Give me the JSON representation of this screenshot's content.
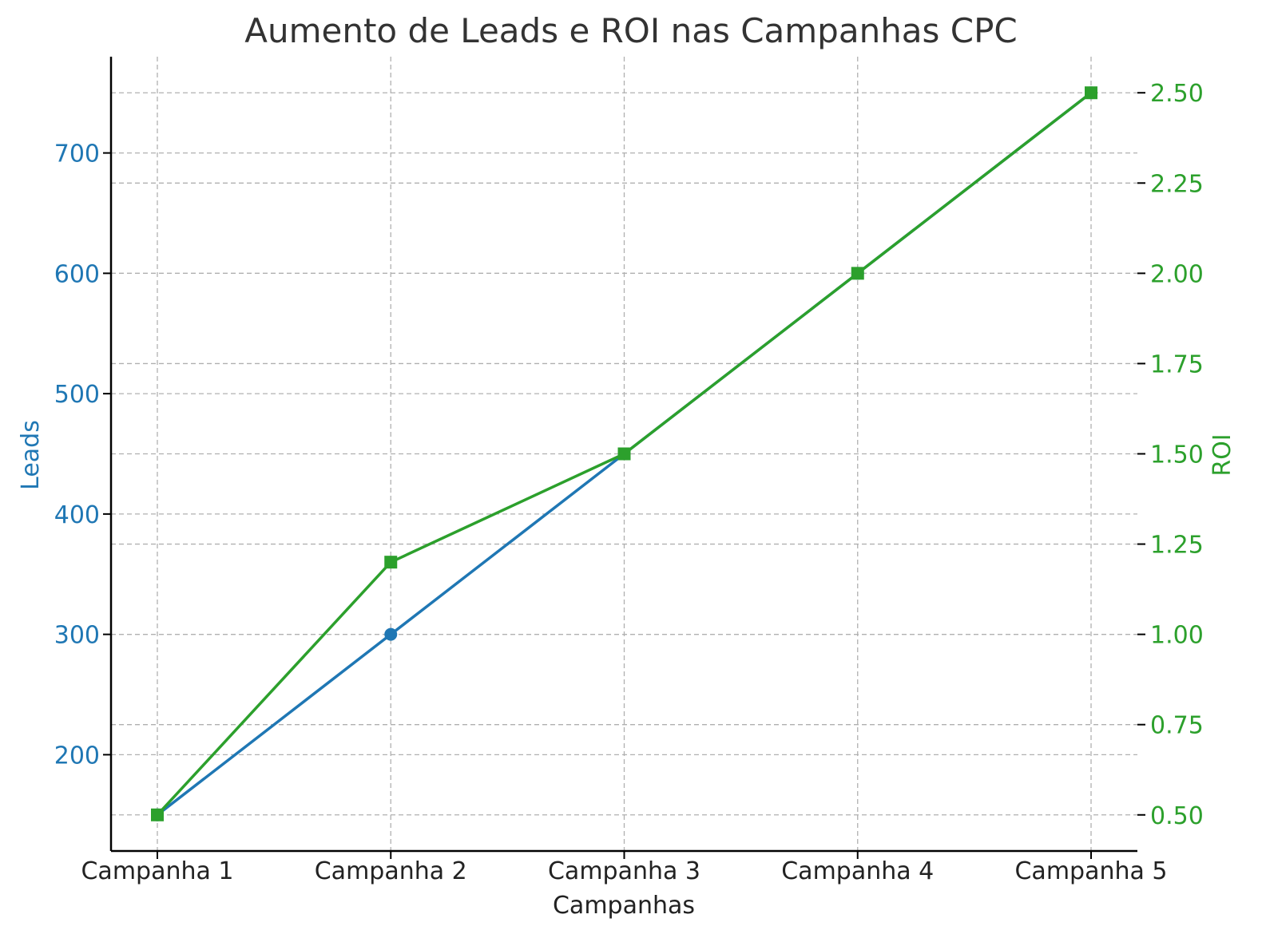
{
  "chart_data": {
    "type": "line",
    "title": "Aumento de Leads e ROI nas Campanhas CPC",
    "xlabel": "Campanhas",
    "categories": [
      "Campanha 1",
      "Campanha 2",
      "Campanha 3",
      "Campanha 4",
      "Campanha 5"
    ],
    "y_left": {
      "label": "Leads",
      "color": "#1f77b4",
      "ylim": [
        120,
        780
      ],
      "ticks": [
        200,
        300,
        400,
        500,
        600,
        700
      ]
    },
    "y_right": {
      "label": "ROI",
      "color": "#2ca02c",
      "ylim": [
        0.4,
        2.6
      ],
      "ticks": [
        0.5,
        0.75,
        1.0,
        1.25,
        1.5,
        1.75,
        2.0,
        2.25,
        2.5
      ],
      "tick_labels": [
        "0.50",
        "0.75",
        "1.00",
        "1.25",
        "1.50",
        "1.75",
        "2.00",
        "2.25",
        "2.50"
      ]
    },
    "series": [
      {
        "axis": "left",
        "values": [
          150,
          300,
          450,
          600,
          750
        ],
        "color": "#1f77b4",
        "marker": "circle"
      },
      {
        "axis": "right",
        "values": [
          0.5,
          1.2,
          1.5,
          2.0,
          2.5
        ],
        "color": "#2ca02c",
        "marker": "square"
      }
    ],
    "grid": true
  }
}
